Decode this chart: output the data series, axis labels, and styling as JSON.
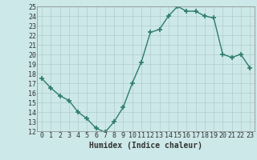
{
  "x": [
    0,
    1,
    2,
    3,
    4,
    5,
    6,
    7,
    8,
    9,
    10,
    11,
    12,
    13,
    14,
    15,
    16,
    17,
    18,
    19,
    20,
    21,
    22,
    23
  ],
  "y": [
    17.5,
    16.5,
    15.7,
    15.2,
    14.0,
    13.3,
    12.3,
    11.9,
    13.0,
    14.5,
    17.0,
    19.2,
    22.3,
    22.6,
    24.0,
    25.0,
    24.5,
    24.5,
    24.0,
    23.8,
    20.0,
    19.7,
    20.0,
    18.6
  ],
  "line_color": "#2e7d6e",
  "marker": "+",
  "marker_size": 4,
  "bg_color": "#cce8e8",
  "grid_color": "#b0cccc",
  "xlabel": "Humidex (Indice chaleur)",
  "xlim": [
    -0.5,
    23.5
  ],
  "ylim": [
    12,
    25
  ],
  "yticks": [
    12,
    13,
    14,
    15,
    16,
    17,
    18,
    19,
    20,
    21,
    22,
    23,
    24,
    25
  ],
  "xticks": [
    0,
    1,
    2,
    3,
    4,
    5,
    6,
    7,
    8,
    9,
    10,
    11,
    12,
    13,
    14,
    15,
    16,
    17,
    18,
    19,
    20,
    21,
    22,
    23
  ],
  "xlabel_fontsize": 7,
  "tick_fontsize": 6,
  "line_width": 1.0
}
